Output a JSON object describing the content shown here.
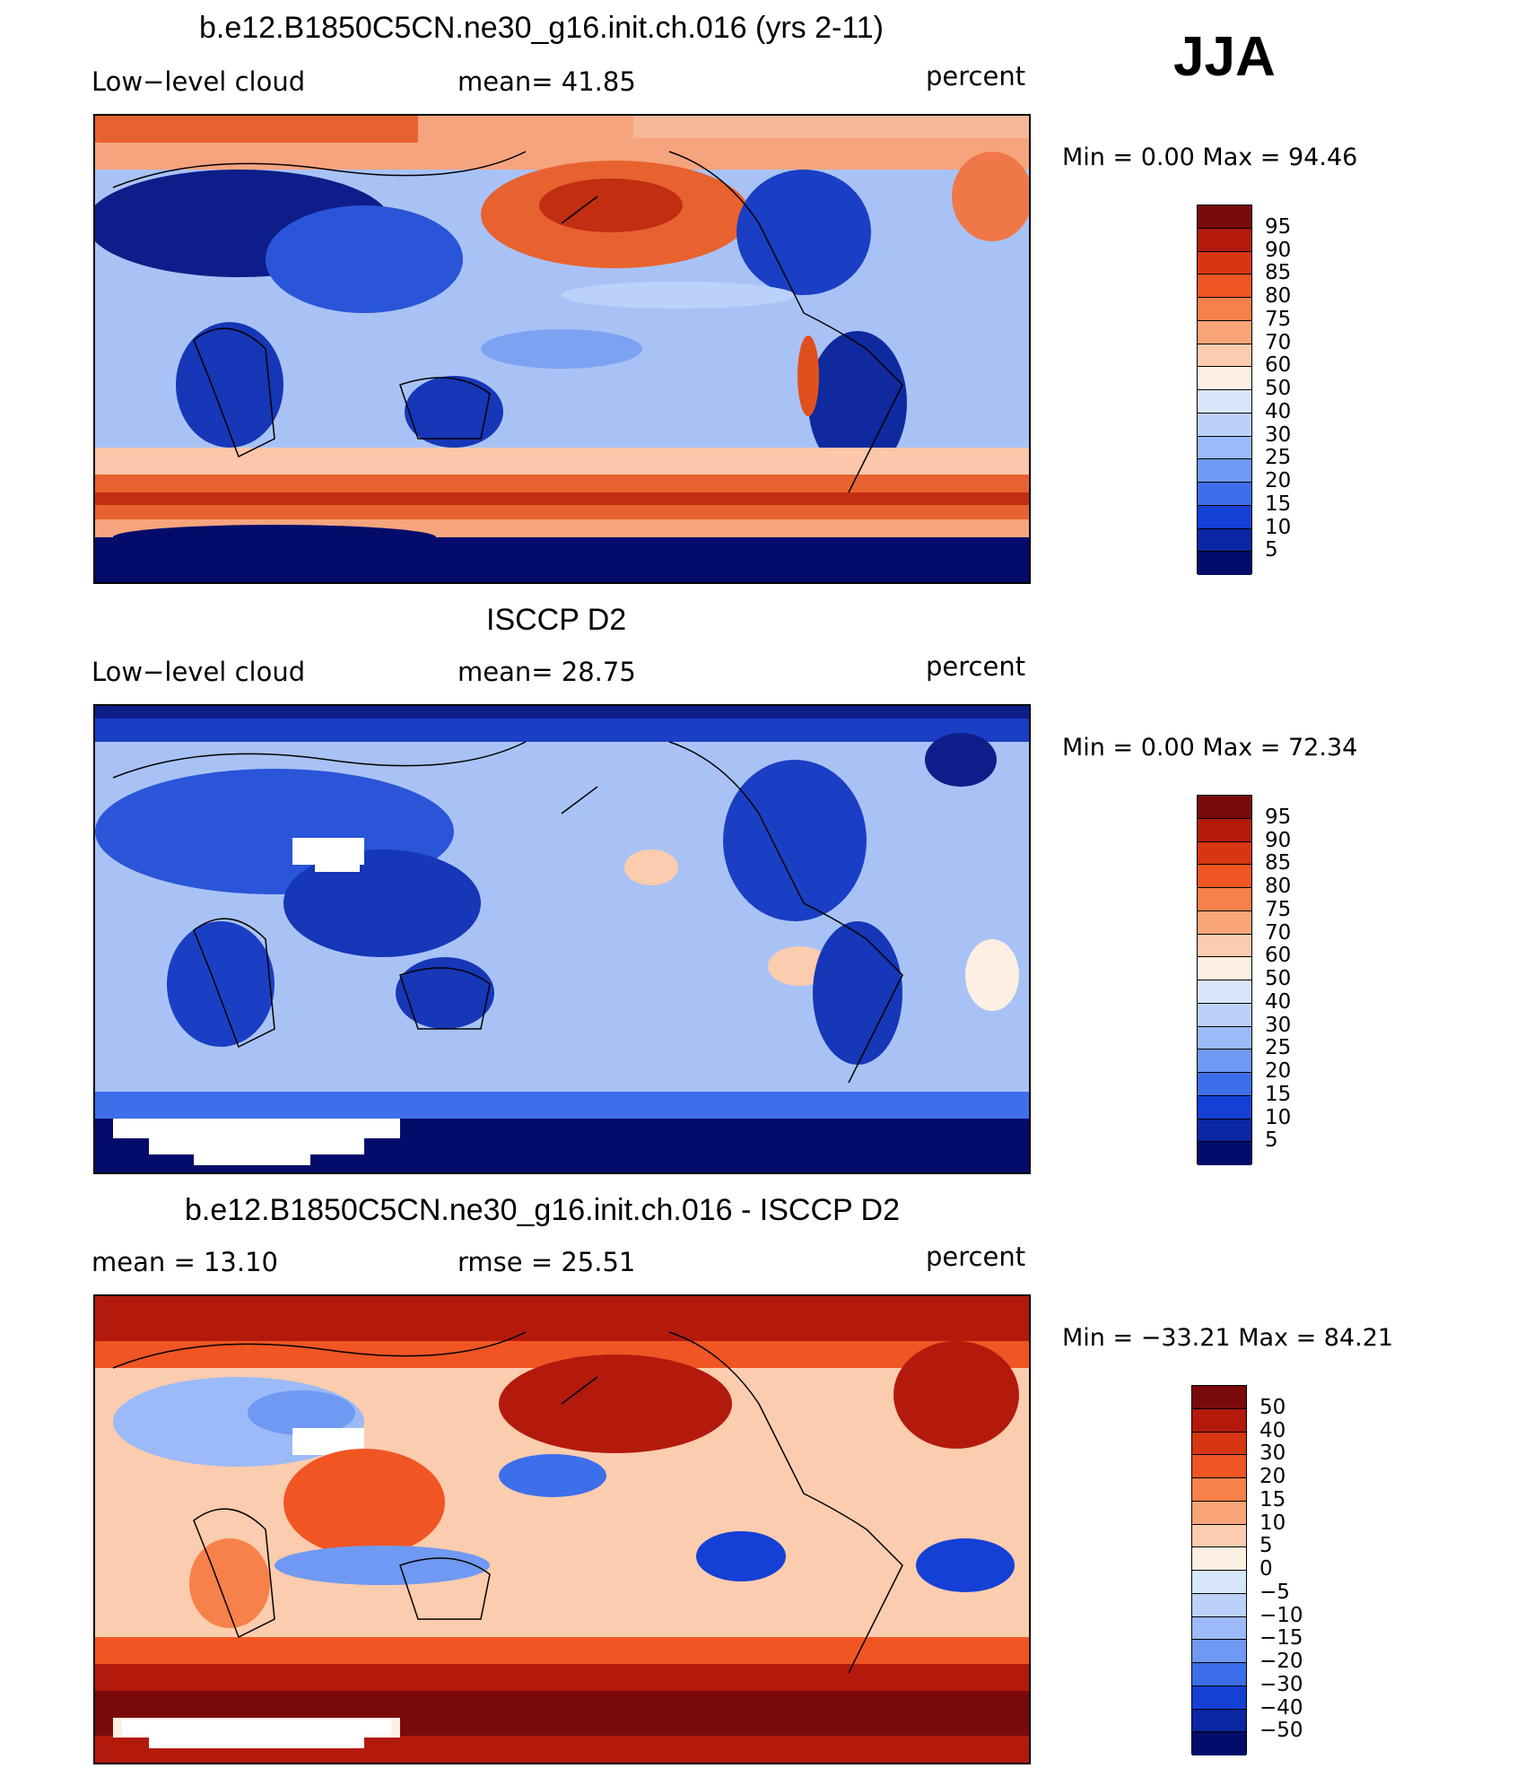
{
  "season": "JJA",
  "panels": [
    {
      "title": "b.e12.B1850C5CN.ne30_g16.init.ch.016 (yrs 2-11)",
      "left_label": "Low−level cloud",
      "middle_label": "mean=   41.85",
      "right_label": "percent",
      "minmax": "Min =     0.00 Max =   94.46",
      "colorbar": {
        "colors": [
          "#7a0a0a",
          "#b31a0c",
          "#d73612",
          "#f05523",
          "#f7814a",
          "#f9a577",
          "#fcccae",
          "#fdf0e3",
          "#d8e6fb",
          "#bcd1fa",
          "#9cbaf7",
          "#6f99f2",
          "#3e6fea",
          "#1440d6",
          "#0a26a3",
          "#030c6b"
        ],
        "labels": [
          "95",
          "90",
          "85",
          "80",
          "75",
          "70",
          "60",
          "50",
          "40",
          "30",
          "25",
          "20",
          "15",
          "10",
          "5"
        ]
      }
    },
    {
      "title": "ISCCP D2",
      "left_label": "Low−level cloud",
      "middle_label": "mean=   28.75",
      "right_label": "percent",
      "minmax": "Min =     0.00 Max =   72.34",
      "colorbar": {
        "colors": [
          "#7a0a0a",
          "#b31a0c",
          "#d73612",
          "#f05523",
          "#f7814a",
          "#f9a577",
          "#fcccae",
          "#fdf0e3",
          "#d8e6fb",
          "#bcd1fa",
          "#9cbaf7",
          "#6f99f2",
          "#3e6fea",
          "#1440d6",
          "#0a26a3",
          "#030c6b"
        ],
        "labels": [
          "95",
          "90",
          "85",
          "80",
          "75",
          "70",
          "60",
          "50",
          "40",
          "30",
          "25",
          "20",
          "15",
          "10",
          "5"
        ]
      }
    },
    {
      "title": "b.e12.B1850C5CN.ne30_g16.init.ch.016 - ISCCP D2",
      "left_label": "mean =    13.10",
      "middle_label": "rmse =    25.51",
      "right_label": "percent",
      "minmax": "Min = −33.21  Max =   84.21",
      "colorbar": {
        "colors": [
          "#7a0a0a",
          "#b31a0c",
          "#d73612",
          "#f05523",
          "#f7814a",
          "#f9a577",
          "#fcccae",
          "#fdf0e3",
          "#d8e6fb",
          "#bcd1fa",
          "#9cbaf7",
          "#6f99f2",
          "#3e6fea",
          "#1440d6",
          "#0a26a3",
          "#030c6b"
        ],
        "labels": [
          "50",
          "40",
          "30",
          "20",
          "15",
          "10",
          "5",
          "0",
          "−5",
          "−10",
          "−15",
          "−20",
          "−30",
          "−40",
          "−50"
        ]
      }
    }
  ]
}
